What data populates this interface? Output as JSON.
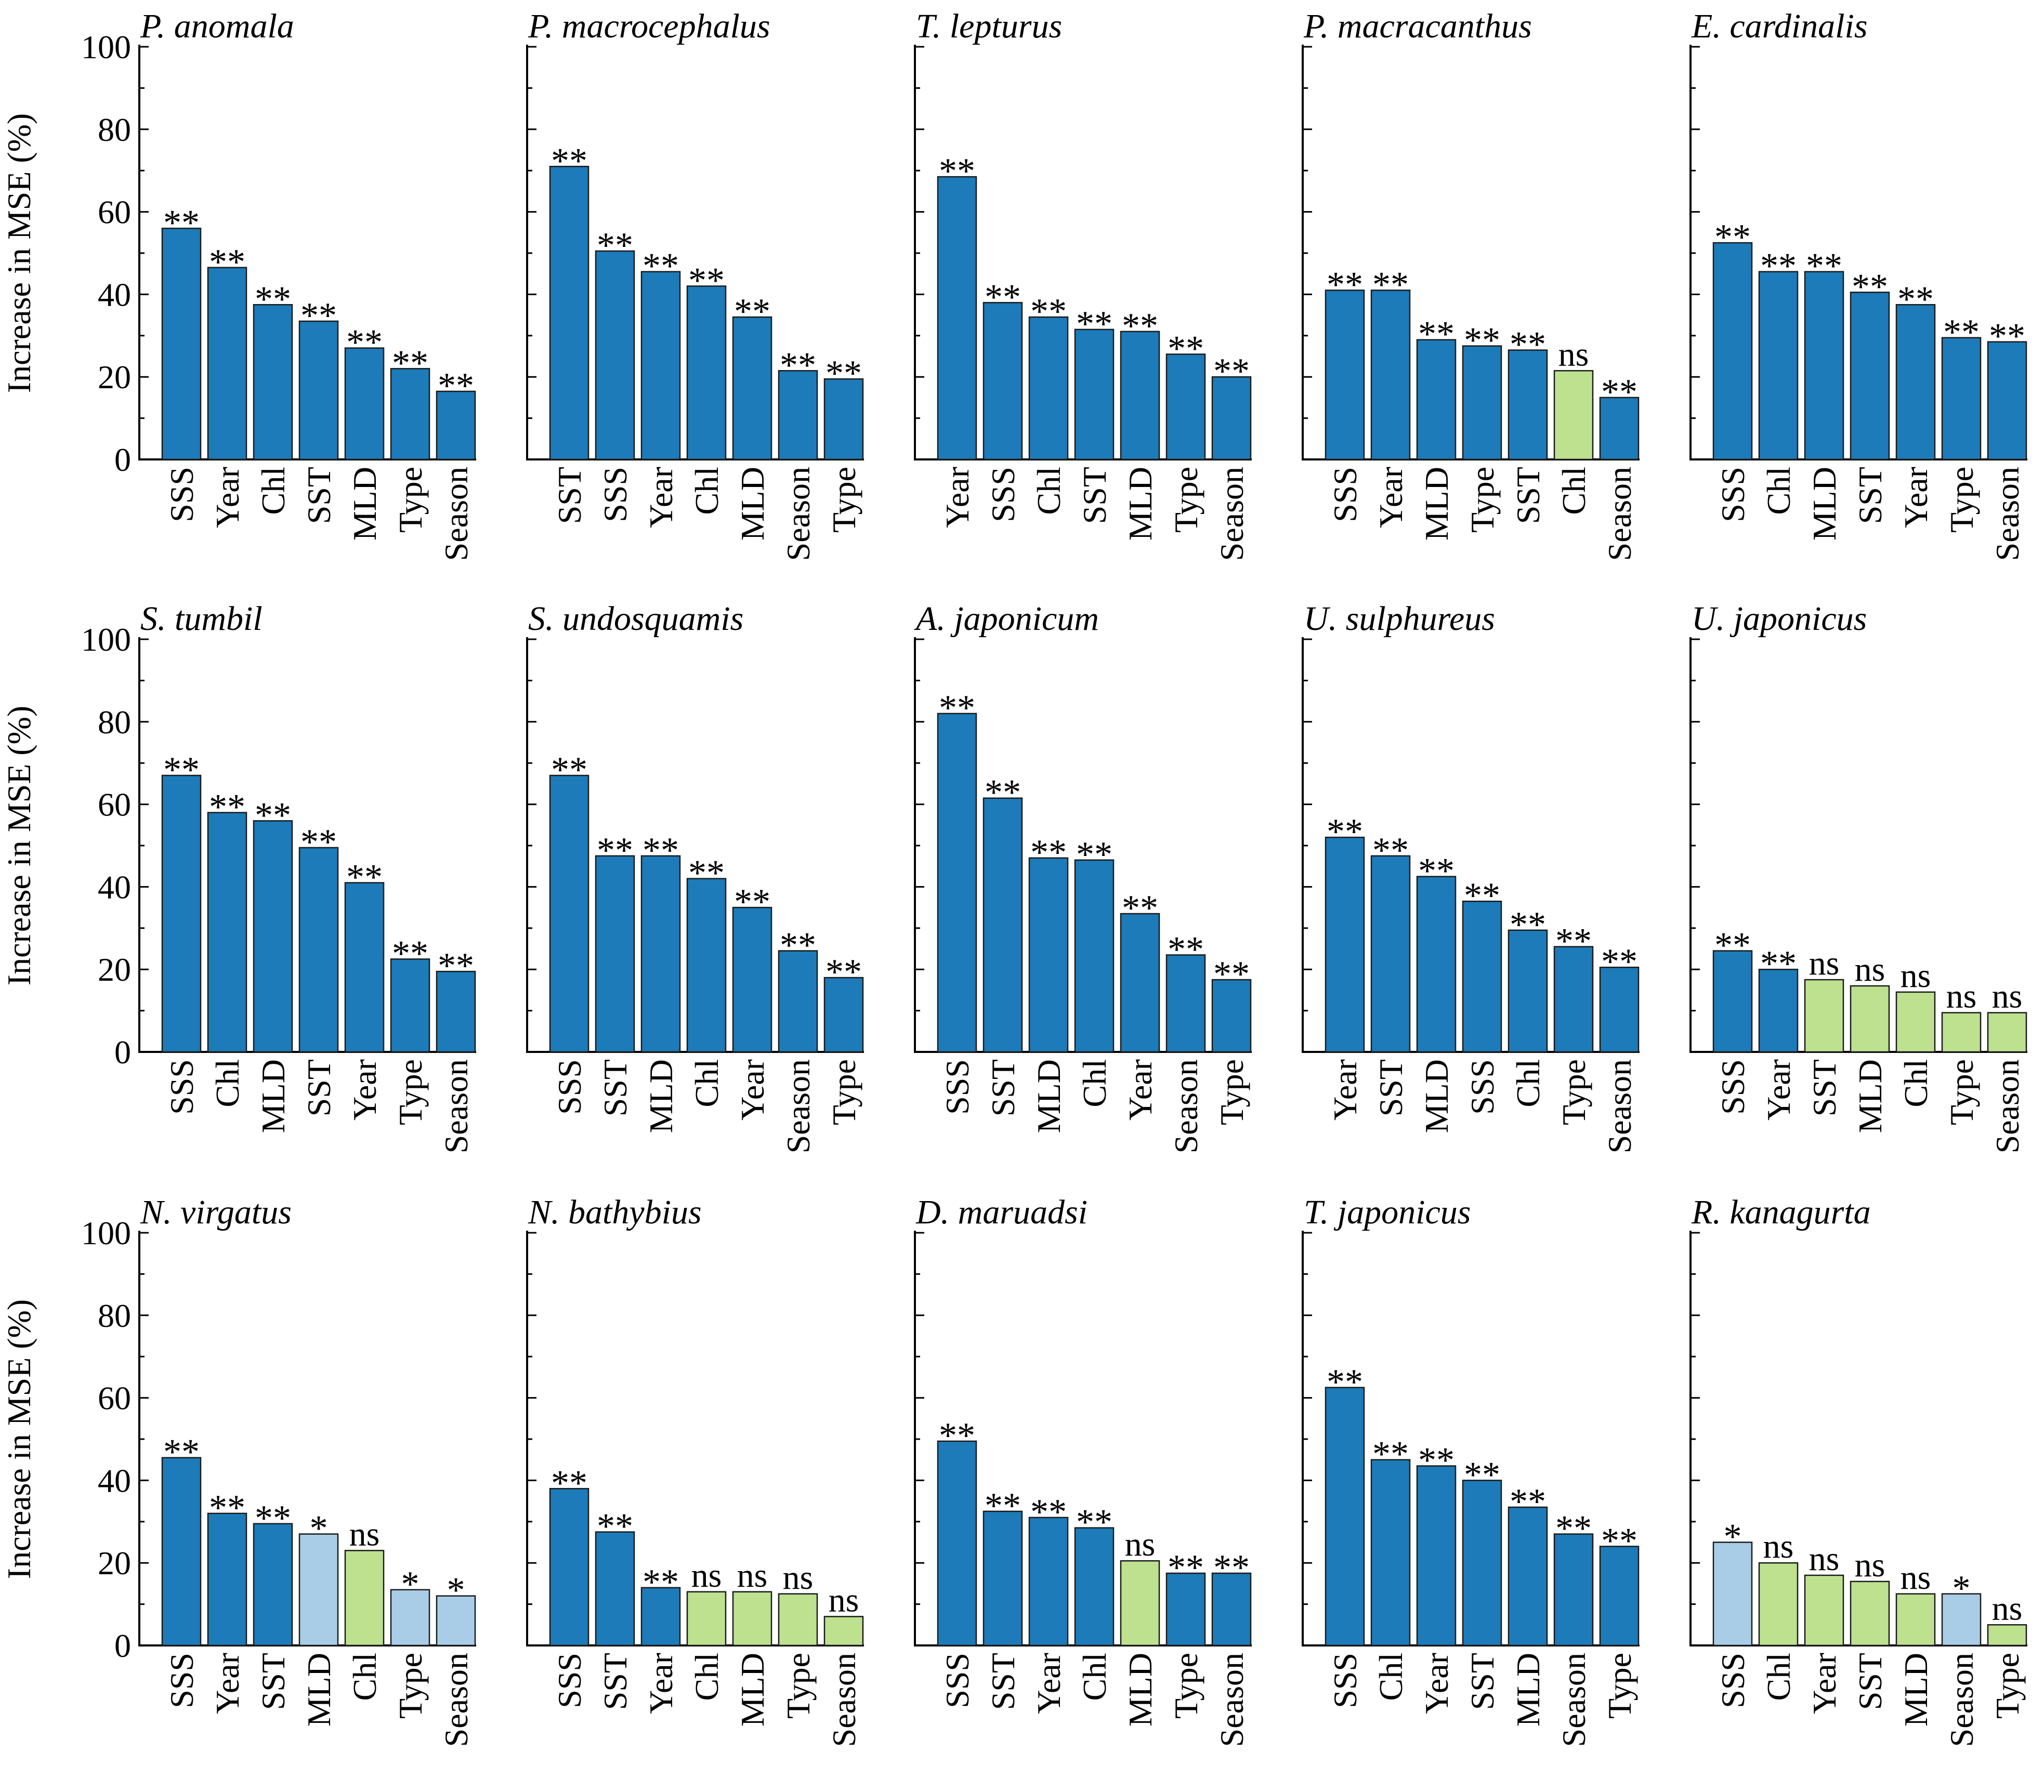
{
  "colors": {
    "sig2": "#1c7bb8",
    "sig1": "#a9cde6",
    "ns": "#bde18f",
    "axis": "#000000",
    "bar_edge": "#1a1a1a"
  },
  "y_label": "Increase in MSE (%)",
  "y_ticks": [
    "0",
    "20",
    "40",
    "60",
    "80",
    "100"
  ],
  "chart_data": [
    {
      "type": "bar",
      "title": "P. anomala",
      "ylim": [
        0,
        100
      ],
      "categories": [
        "SSS",
        "Year",
        "Chl",
        "SST",
        "MLD",
        "Type",
        "Season"
      ],
      "values": [
        56,
        46.5,
        37.5,
        33.5,
        27,
        22,
        16.5
      ],
      "significance": [
        "**",
        "**",
        "**",
        "**",
        "**",
        "**",
        "**"
      ]
    },
    {
      "type": "bar",
      "title": "P. macrocephalus",
      "ylim": [
        0,
        100
      ],
      "categories": [
        "SST",
        "SSS",
        "Year",
        "Chl",
        "MLD",
        "Season",
        "Type"
      ],
      "values": [
        71,
        50.5,
        45.5,
        42,
        34.5,
        21.5,
        19.5
      ],
      "significance": [
        "**",
        "**",
        "**",
        "**",
        "**",
        "**",
        "**"
      ]
    },
    {
      "type": "bar",
      "title": "T. lepturus",
      "ylim": [
        0,
        100
      ],
      "categories": [
        "Year",
        "SSS",
        "Chl",
        "SST",
        "MLD",
        "Type",
        "Season"
      ],
      "values": [
        68.5,
        38,
        34.5,
        31.5,
        31,
        25.5,
        20
      ],
      "significance": [
        "**",
        "**",
        "**",
        "**",
        "**",
        "**",
        "**"
      ]
    },
    {
      "type": "bar",
      "title": "P. macracanthus",
      "ylim": [
        0,
        100
      ],
      "categories": [
        "SSS",
        "Year",
        "MLD",
        "Type",
        "SST",
        "Chl",
        "Season"
      ],
      "values": [
        41,
        41,
        29,
        27.5,
        26.5,
        21.5,
        15
      ],
      "significance": [
        "**",
        "**",
        "**",
        "**",
        "**",
        "ns",
        "**"
      ]
    },
    {
      "type": "bar",
      "title": "E. cardinalis",
      "ylim": [
        0,
        100
      ],
      "categories": [
        "SSS",
        "Chl",
        "MLD",
        "SST",
        "Year",
        "Type",
        "Season"
      ],
      "values": [
        52.5,
        45.5,
        45.5,
        40.5,
        37.5,
        29.5,
        28.5
      ],
      "significance": [
        "**",
        "**",
        "**",
        "**",
        "**",
        "**",
        "**"
      ]
    },
    {
      "type": "bar",
      "title": "S. tumbil",
      "ylim": [
        0,
        100
      ],
      "categories": [
        "SSS",
        "Chl",
        "MLD",
        "SST",
        "Year",
        "Type",
        "Season"
      ],
      "values": [
        67,
        58,
        56,
        49.5,
        41,
        22.5,
        19.5
      ],
      "significance": [
        "**",
        "**",
        "**",
        "**",
        "**",
        "**",
        "**"
      ]
    },
    {
      "type": "bar",
      "title": "S. undosquamis",
      "ylim": [
        0,
        100
      ],
      "categories": [
        "SSS",
        "SST",
        "MLD",
        "Chl",
        "Year",
        "Season",
        "Type"
      ],
      "values": [
        67,
        47.5,
        47.5,
        42,
        35,
        24.5,
        18
      ],
      "significance": [
        "**",
        "**",
        "**",
        "**",
        "**",
        "**",
        "**"
      ]
    },
    {
      "type": "bar",
      "title": "A. japonicum",
      "ylim": [
        0,
        100
      ],
      "categories": [
        "SSS",
        "SST",
        "MLD",
        "Chl",
        "Year",
        "Season",
        "Type"
      ],
      "values": [
        82,
        61.5,
        47,
        46.5,
        33.5,
        23.5,
        17.5
      ],
      "significance": [
        "**",
        "**",
        "**",
        "**",
        "**",
        "**",
        "**"
      ]
    },
    {
      "type": "bar",
      "title": "U. sulphureus",
      "ylim": [
        0,
        100
      ],
      "categories": [
        "Year",
        "SST",
        "MLD",
        "SSS",
        "Chl",
        "Type",
        "Season"
      ],
      "values": [
        52,
        47.5,
        42.5,
        36.5,
        29.5,
        25.5,
        20.5
      ],
      "significance": [
        "**",
        "**",
        "**",
        "**",
        "**",
        "**",
        "**"
      ]
    },
    {
      "type": "bar",
      "title": "U. japonicus",
      "ylim": [
        0,
        100
      ],
      "categories": [
        "SSS",
        "Year",
        "SST",
        "MLD",
        "Chl",
        "Type",
        "Season"
      ],
      "values": [
        24.5,
        20,
        17.5,
        16,
        14.5,
        9.5,
        9.5
      ],
      "significance": [
        "**",
        "**",
        "ns",
        "ns",
        "ns",
        "ns",
        "ns"
      ]
    },
    {
      "type": "bar",
      "title": "N. virgatus",
      "ylim": [
        0,
        100
      ],
      "categories": [
        "SSS",
        "Year",
        "SST",
        "MLD",
        "Chl",
        "Type",
        "Season"
      ],
      "values": [
        45.5,
        32,
        29.5,
        27,
        23,
        13.5,
        12
      ],
      "significance": [
        "**",
        "**",
        "**",
        "*",
        "ns",
        "*",
        "*"
      ]
    },
    {
      "type": "bar",
      "title": "N. bathybius",
      "ylim": [
        0,
        100
      ],
      "categories": [
        "SSS",
        "SST",
        "Year",
        "Chl",
        "MLD",
        "Type",
        "Season"
      ],
      "values": [
        38,
        27.5,
        14,
        13,
        13,
        12.5,
        7
      ],
      "significance": [
        "**",
        "**",
        "**",
        "ns",
        "ns",
        "ns",
        "ns"
      ]
    },
    {
      "type": "bar",
      "title": "D. maruadsi",
      "ylim": [
        0,
        100
      ],
      "categories": [
        "SSS",
        "SST",
        "Year",
        "Chl",
        "MLD",
        "Type",
        "Season"
      ],
      "values": [
        49.5,
        32.5,
        31,
        28.5,
        20.5,
        17.5,
        17.5
      ],
      "significance": [
        "**",
        "**",
        "**",
        "**",
        "ns",
        "**",
        "**"
      ]
    },
    {
      "type": "bar",
      "title": "T. japonicus",
      "ylim": [
        0,
        100
      ],
      "categories": [
        "SSS",
        "Chl",
        "Year",
        "SST",
        "MLD",
        "Season",
        "Type"
      ],
      "values": [
        62.5,
        45,
        43.5,
        40,
        33.5,
        27,
        24
      ],
      "significance": [
        "**",
        "**",
        "**",
        "**",
        "**",
        "**",
        "**"
      ]
    },
    {
      "type": "bar",
      "title": "R. kanagurta",
      "ylim": [
        0,
        100
      ],
      "categories": [
        "SSS",
        "Chl",
        "Year",
        "SST",
        "MLD",
        "Season",
        "Type"
      ],
      "values": [
        25,
        20,
        17,
        15.5,
        12.5,
        12.5,
        5
      ],
      "significance": [
        "*",
        "ns",
        "ns",
        "ns",
        "ns",
        "*",
        "ns"
      ]
    }
  ]
}
